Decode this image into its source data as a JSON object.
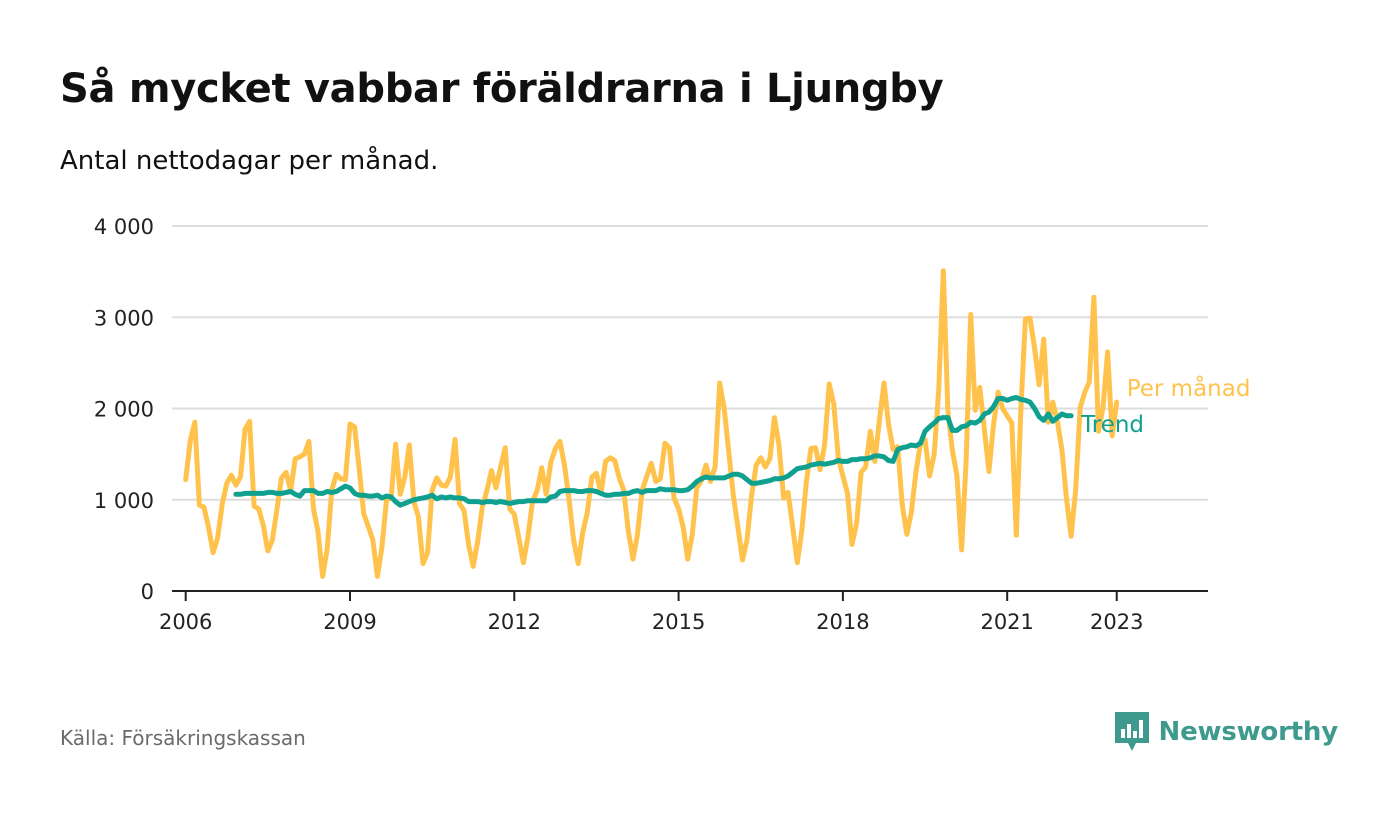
{
  "header": {
    "title": "Så mycket vabbar föräldrarna i Ljungby",
    "subtitle": "Antal nettodagar per månad."
  },
  "footer": {
    "source": "Källa: Försäkringskassan",
    "brand": "Newsworthy",
    "brand_icon": "newsworthy-logo-icon"
  },
  "colors": {
    "monthly": "#FFC34D",
    "trend": "#10A090",
    "grid": "#dddddd",
    "axis": "#222222",
    "brand": "#3f9a8e"
  },
  "chart_data": {
    "type": "line",
    "xlabel": "",
    "ylabel": "",
    "x_ticks": [
      "2006",
      "2009",
      "2012",
      "2015",
      "2018",
      "2021",
      "2023"
    ],
    "y_ticks": [
      "0",
      "1 000",
      "2 000",
      "3 000",
      "4 000"
    ],
    "ylim": [
      0,
      4000
    ],
    "xlim": [
      "2005-10",
      "2024-09"
    ],
    "grid": true,
    "series": [
      {
        "name": "Per månad",
        "start": "2006-01",
        "frequency": "monthly",
        "values": [
          1220,
          1650,
          1850,
          940,
          920,
          700,
          420,
          580,
          950,
          1180,
          1270,
          1160,
          1250,
          1770,
          1860,
          930,
          900,
          720,
          440,
          560,
          900,
          1240,
          1300,
          1100,
          1450,
          1470,
          1500,
          1640,
          900,
          650,
          160,
          460,
          1100,
          1280,
          1230,
          1220,
          1830,
          1800,
          1350,
          850,
          710,
          560,
          160,
          480,
          1000,
          1020,
          1610,
          1060,
          1250,
          1600,
          980,
          810,
          300,
          420,
          1100,
          1240,
          1160,
          1150,
          1250,
          1660,
          960,
          880,
          500,
          270,
          550,
          920,
          1100,
          1320,
          1130,
          1360,
          1570,
          900,
          840,
          580,
          310,
          600,
          980,
          1100,
          1350,
          1060,
          1410,
          1560,
          1640,
          1380,
          1000,
          560,
          300,
          640,
          860,
          1250,
          1290,
          1070,
          1420,
          1460,
          1430,
          1240,
          1100,
          650,
          350,
          620,
          1100,
          1250,
          1400,
          1200,
          1230,
          1620,
          1570,
          1020,
          900,
          700,
          350,
          620,
          1130,
          1210,
          1380,
          1200,
          1360,
          2280,
          2000,
          1520,
          1040,
          700,
          340,
          560,
          1050,
          1380,
          1460,
          1360,
          1450,
          1900,
          1600,
          1020,
          1080,
          700,
          310,
          660,
          1200,
          1560,
          1570,
          1330,
          1600,
          2270,
          2050,
          1460,
          1260,
          1070,
          510,
          740,
          1300,
          1360,
          1750,
          1420,
          1870,
          2280,
          1830,
          1550,
          1580,
          950,
          620,
          860,
          1300,
          1620,
          1660,
          1260,
          1500,
          2200,
          3510,
          1970,
          1540,
          1260,
          450,
          1420,
          3030,
          1980,
          2230,
          1770,
          1310,
          1820,
          2180,
          2000,
          1920,
          1840,
          610,
          2000,
          2980,
          2990,
          2660,
          2260,
          2760,
          1850,
          2070,
          1860,
          1540,
          1010,
          600,
          1100,
          2010,
          2180,
          2290,
          3220,
          1750,
          2010,
          2620,
          1700,
          2070
        ]
      },
      {
        "name": "Trend",
        "start": "2006-12",
        "frequency": "monthly",
        "values": [
          1060,
          1060,
          1070,
          1070,
          1070,
          1070,
          1070,
          1080,
          1080,
          1070,
          1070,
          1080,
          1090,
          1060,
          1040,
          1100,
          1100,
          1100,
          1070,
          1070,
          1090,
          1080,
          1090,
          1120,
          1150,
          1130,
          1070,
          1050,
          1050,
          1040,
          1040,
          1050,
          1020,
          1040,
          1030,
          980,
          940,
          960,
          980,
          1000,
          1010,
          1020,
          1030,
          1050,
          1010,
          1030,
          1020,
          1030,
          1020,
          1020,
          1010,
          980,
          980,
          980,
          970,
          980,
          980,
          970,
          980,
          970,
          960,
          970,
          980,
          980,
          990,
          990,
          990,
          990,
          990,
          1030,
          1040,
          1090,
          1100,
          1100,
          1100,
          1090,
          1090,
          1100,
          1100,
          1090,
          1070,
          1050,
          1050,
          1060,
          1060,
          1070,
          1070,
          1090,
          1100,
          1080,
          1100,
          1100,
          1100,
          1120,
          1110,
          1110,
          1110,
          1100,
          1100,
          1110,
          1150,
          1200,
          1230,
          1250,
          1240,
          1240,
          1240,
          1240,
          1260,
          1280,
          1280,
          1260,
          1220,
          1180,
          1180,
          1190,
          1200,
          1210,
          1230,
          1230,
          1240,
          1260,
          1300,
          1340,
          1350,
          1360,
          1380,
          1390,
          1400,
          1390,
          1400,
          1410,
          1430,
          1420,
          1420,
          1440,
          1440,
          1450,
          1450,
          1460,
          1480,
          1480,
          1470,
          1430,
          1420,
          1550,
          1570,
          1580,
          1600,
          1590,
          1620,
          1750,
          1800,
          1840,
          1890,
          1900,
          1900,
          1760,
          1760,
          1800,
          1810,
          1850,
          1840,
          1870,
          1940,
          1960,
          2020,
          2110,
          2110,
          2090,
          2110,
          2120,
          2100,
          2090,
          2070,
          2000,
          1910,
          1870,
          1940,
          1860,
          1900,
          1940,
          1920,
          1920
        ]
      }
    ]
  }
}
